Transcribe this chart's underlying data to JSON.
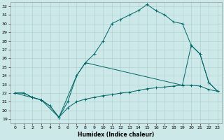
{
  "xlabel": "Humidex (Indice chaleur)",
  "bg_color": "#cce8e8",
  "line_color": "#006666",
  "grid_color": "#aacccc",
  "xlim": [
    -0.5,
    23.5
  ],
  "ylim": [
    18.5,
    32.5
  ],
  "xticks": [
    0,
    1,
    2,
    3,
    4,
    5,
    6,
    7,
    8,
    9,
    10,
    11,
    12,
    13,
    14,
    15,
    16,
    17,
    18,
    19,
    20,
    21,
    22,
    23
  ],
  "yticks": [
    19,
    20,
    21,
    22,
    23,
    24,
    25,
    26,
    27,
    28,
    29,
    30,
    31,
    32
  ],
  "line_bottom_x": [
    0,
    1,
    2,
    3,
    4,
    5,
    6,
    7,
    8,
    9,
    10,
    11,
    12,
    13,
    14,
    15,
    16,
    17,
    18,
    19,
    20,
    21,
    22,
    23
  ],
  "line_bottom_y": [
    22,
    22,
    21.5,
    21.2,
    20.5,
    19.2,
    20.3,
    21.0,
    21.3,
    21.5,
    21.7,
    21.8,
    22.0,
    22.1,
    22.3,
    22.5,
    22.6,
    22.7,
    22.8,
    22.9,
    22.9,
    22.8,
    22.4,
    22.2
  ],
  "line_top_x": [
    0,
    1,
    2,
    3,
    4,
    5,
    6,
    7,
    8,
    9,
    10,
    11,
    12,
    13,
    14,
    15,
    16,
    17,
    18,
    19,
    20,
    21,
    22,
    23
  ],
  "line_top_y": [
    22,
    22,
    21.5,
    21.2,
    20.5,
    19.2,
    21.0,
    24.0,
    25.5,
    26.5,
    28.0,
    30.0,
    30.5,
    31.0,
    31.5,
    32.2,
    31.5,
    31.0,
    30.2,
    30.0,
    27.5,
    26.5,
    23.2,
    22.2
  ],
  "line_mid_x": [
    0,
    3,
    5,
    7,
    8,
    19,
    20,
    21,
    22,
    23
  ],
  "line_mid_y": [
    22,
    21.2,
    19.2,
    24.0,
    25.5,
    22.9,
    27.5,
    26.5,
    23.2,
    22.2
  ]
}
